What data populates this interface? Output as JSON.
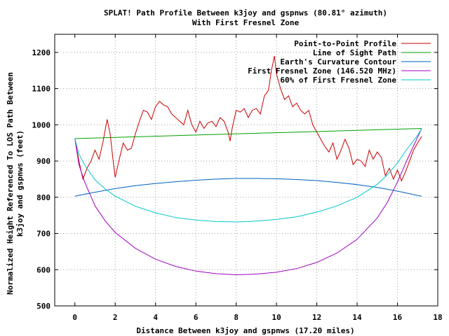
{
  "chart_data": {
    "type": "line",
    "title": "SPLAT! Path Profile Between k3joy and gspnws (80.81° azimuth)",
    "subtitle": "With First Fresnel Zone",
    "xlabel": "Distance Between k3joy and gspnws (17.20 miles)",
    "ylabel": "Normalized Height Referenced To LOS Path Between k3joy and gspnws (feet)",
    "ylabel_lines": [
      "Normalized Height Referenced To LOS Path Between",
      "k3joy and gspnws (feet)"
    ],
    "xlim": [
      -1,
      18
    ],
    "ylim": [
      500,
      1250
    ],
    "x_ticks": [
      0,
      2,
      4,
      6,
      8,
      10,
      12,
      14,
      16,
      18
    ],
    "y_ticks": [
      500,
      600,
      700,
      800,
      900,
      1000,
      1100,
      1200
    ],
    "grid": true,
    "legend_position": "top-right",
    "series": [
      {
        "name": "Point-to-Point Profile",
        "color": "#cc0000",
        "x": [
          0,
          0.2,
          0.4,
          0.6,
          0.8,
          1.0,
          1.2,
          1.4,
          1.6,
          1.75,
          1.9,
          2.0,
          2.2,
          2.4,
          2.6,
          2.8,
          3.0,
          3.2,
          3.4,
          3.6,
          3.8,
          4.0,
          4.2,
          4.4,
          4.6,
          4.8,
          5.0,
          5.2,
          5.4,
          5.6,
          5.8,
          6.0,
          6.2,
          6.4,
          6.6,
          6.8,
          7.0,
          7.2,
          7.4,
          7.6,
          7.7,
          7.8,
          8.0,
          8.2,
          8.4,
          8.6,
          8.8,
          9.0,
          9.2,
          9.4,
          9.6,
          9.75,
          9.9,
          10.0,
          10.2,
          10.4,
          10.6,
          10.8,
          11.0,
          11.2,
          11.4,
          11.6,
          11.8,
          12.0,
          12.2,
          12.4,
          12.6,
          12.8,
          13.0,
          13.2,
          13.4,
          13.6,
          13.8,
          14.0,
          14.2,
          14.4,
          14.6,
          14.8,
          15.0,
          15.2,
          15.4,
          15.6,
          15.8,
          16.0,
          16.2,
          16.4,
          16.6,
          16.8,
          17.0,
          17.2
        ],
        "values": [
          962,
          900,
          850,
          880,
          900,
          930,
          905,
          955,
          1015,
          975,
          900,
          855,
          905,
          950,
          930,
          935,
          975,
          1010,
          1040,
          1035,
          1015,
          1050,
          1065,
          1055,
          1050,
          1030,
          1020,
          1010,
          1000,
          1040,
          1000,
          980,
          1010,
          990,
          1005,
          1010,
          995,
          1020,
          1010,
          980,
          955,
          990,
          1040,
          1035,
          1045,
          1020,
          1040,
          1045,
          1030,
          1080,
          1095,
          1150,
          1190,
          1140,
          1100,
          1070,
          1080,
          1050,
          1060,
          1040,
          1030,
          1040,
          1000,
          980,
          960,
          940,
          925,
          950,
          905,
          930,
          960,
          935,
          890,
          905,
          900,
          885,
          930,
          905,
          925,
          910,
          860,
          880,
          850,
          875,
          845,
          870,
          900,
          930,
          950,
          968
        ]
      },
      {
        "name": "Line of Sight Path",
        "color": "#00a000",
        "x": [
          0,
          17.2
        ],
        "values": [
          962,
          990
        ]
      },
      {
        "name": "Earth's Curvature Contour",
        "color": "#0060c0",
        "x": [
          0,
          1,
          2,
          3,
          4,
          5,
          6,
          7,
          8,
          8.6,
          9,
          10,
          11,
          12,
          13,
          14,
          15,
          16,
          17,
          17.2
        ],
        "values": [
          803,
          814,
          824,
          832,
          838,
          843,
          847,
          850,
          852,
          852,
          852,
          851,
          849,
          846,
          841,
          835,
          827,
          817,
          805,
          803
        ]
      },
      {
        "name": "First Fresnel Zone (146.520 MHz)",
        "color": "#a000c0",
        "x": [
          0,
          0.2,
          0.5,
          1,
          1.5,
          2,
          3,
          4,
          5,
          6,
          7,
          8,
          8.6,
          9,
          10,
          11,
          12,
          13,
          14,
          15,
          15.5,
          16,
          16.5,
          17,
          17.2
        ],
        "values": [
          962,
          890,
          840,
          776,
          735,
          703,
          659,
          629,
          609,
          596,
          589,
          586,
          587,
          588,
          593,
          603,
          620,
          646,
          684,
          743,
          786,
          842,
          906,
          966,
          990
        ]
      },
      {
        "name": "60% of First Fresnel Zone",
        "color": "#00c8c8",
        "x": [
          0,
          0.2,
          0.5,
          1,
          1.5,
          2,
          3,
          4,
          5,
          6,
          7,
          8,
          8.6,
          9,
          10,
          11,
          12,
          13,
          14,
          15,
          15.5,
          16,
          16.5,
          17,
          17.2
        ],
        "values": [
          962,
          919,
          888,
          848,
          823,
          803,
          775,
          757,
          744,
          737,
          733,
          732,
          733,
          734,
          739,
          746,
          759,
          776,
          800,
          836,
          862,
          895,
          935,
          971,
          990
        ]
      }
    ]
  }
}
